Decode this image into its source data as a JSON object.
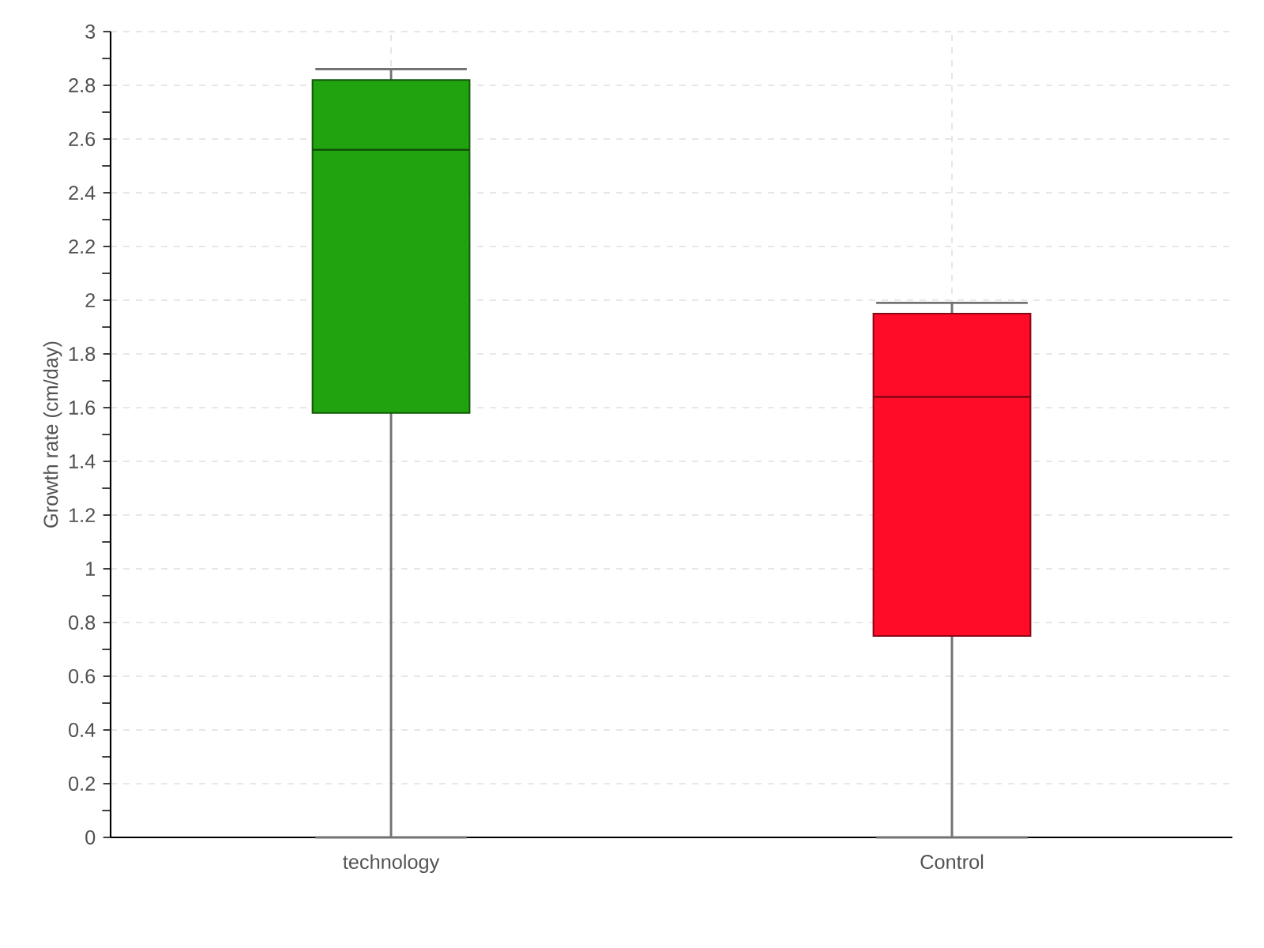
{
  "chart_data": {
    "type": "box",
    "ylabel": "Growth rate (cm/day)",
    "categories": [
      "technology",
      "Control"
    ],
    "colors": [
      "#21a30f",
      "#ff0c28"
    ],
    "boxes": [
      {
        "low": 0,
        "q1": 1.58,
        "median": 2.56,
        "q3": 2.82,
        "high": 2.86
      },
      {
        "low": 0,
        "q1": 0.75,
        "median": 1.64,
        "q3": 1.95,
        "high": 1.99
      }
    ],
    "ylim": [
      0,
      3
    ],
    "yticks": [
      0,
      0.2,
      0.4,
      0.6,
      0.8,
      1,
      1.2,
      1.4,
      1.6,
      1.8,
      2,
      2.2,
      2.4,
      2.6,
      2.8,
      3
    ],
    "grid": true
  }
}
